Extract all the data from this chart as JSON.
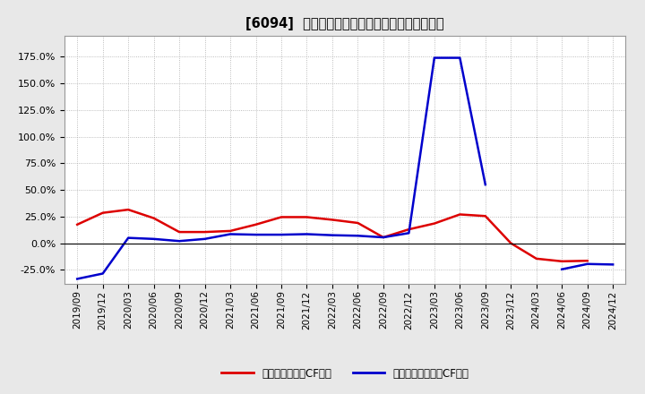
{
  "title": "[6094]  有利子負債キャッシュフロー比率の推移",
  "x_labels": [
    "2019/09",
    "2019/12",
    "2020/03",
    "2020/06",
    "2020/09",
    "2020/12",
    "2021/03",
    "2021/06",
    "2021/09",
    "2021/12",
    "2022/03",
    "2022/06",
    "2022/09",
    "2022/12",
    "2023/03",
    "2023/06",
    "2023/09",
    "2023/12",
    "2024/03",
    "2024/06",
    "2024/09",
    "2024/12"
  ],
  "red_values": [
    0.175,
    0.285,
    0.315,
    0.235,
    0.105,
    0.105,
    0.115,
    0.175,
    0.245,
    0.245,
    0.22,
    0.19,
    0.055,
    0.13,
    0.185,
    0.27,
    0.255,
    0.0,
    -0.145,
    -0.17,
    -0.165,
    null
  ],
  "blue_values": [
    -0.335,
    -0.285,
    0.05,
    0.04,
    0.02,
    0.04,
    0.085,
    0.08,
    0.08,
    0.085,
    0.075,
    0.07,
    0.055,
    0.095,
    1.74,
    1.74,
    0.55,
    null,
    null,
    -0.245,
    -0.195,
    -0.2
  ],
  "red_color": "#dd0000",
  "blue_color": "#0000cc",
  "legend_red": "有利子負債営業CF比率",
  "legend_blue": "有利子負債フリーCF比率",
  "yticks": [
    -0.25,
    0.0,
    0.25,
    0.5,
    0.75,
    1.0,
    1.25,
    1.5,
    1.75
  ],
  "background_color": "#e8e8e8",
  "plot_bg_color": "#ffffff",
  "grid_color": "#aaaaaa"
}
